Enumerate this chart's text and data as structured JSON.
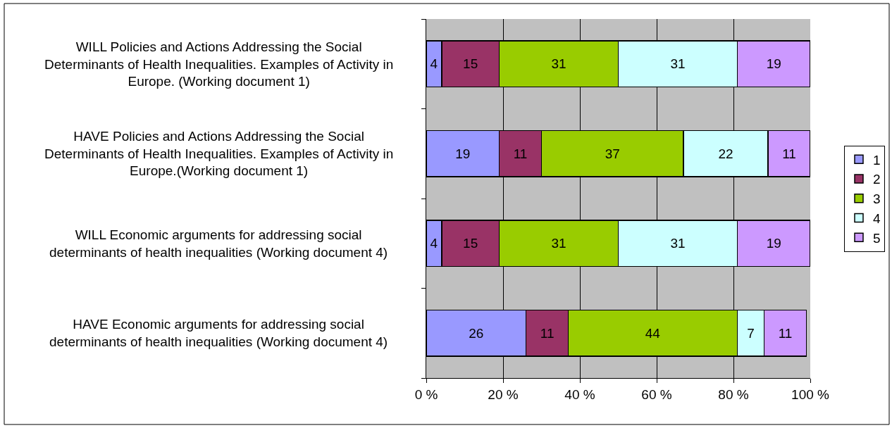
{
  "chart_data": {
    "type": "bar",
    "orientation": "horizontal",
    "stacked": true,
    "categories": [
      "WILL Policies and Actions Addressing the Social Determinants of Health Inequalities. Examples of Activity in Europe. (Working document 1)",
      "HAVE Policies and Actions Addressing the Social Determinants of Health Inequalities. Examples of Activity in Europe.(Working document 1)",
      "WILL Economic arguments for addressing social determinants of health inequalities (Working document 4)",
      "HAVE Economic arguments for addressing social determinants of health inequalities (Working document 4)"
    ],
    "series": [
      {
        "name": "1",
        "color": "#9999ff",
        "values": [
          4,
          19,
          4,
          26
        ]
      },
      {
        "name": "2",
        "color": "#993366",
        "values": [
          15,
          11,
          15,
          11
        ]
      },
      {
        "name": "3",
        "color": "#99cc00",
        "values": [
          31,
          37,
          31,
          44
        ]
      },
      {
        "name": "4",
        "color": "#ccffff",
        "values": [
          31,
          22,
          31,
          7
        ]
      },
      {
        "name": "5",
        "color": "#cc99ff",
        "values": [
          19,
          11,
          19,
          11
        ]
      }
    ],
    "xlim": [
      0,
      100
    ],
    "xticks": [
      {
        "value": 0,
        "label": "0 %"
      },
      {
        "value": 20,
        "label": "20 %"
      },
      {
        "value": 40,
        "label": "40 %"
      },
      {
        "value": 60,
        "label": "60 %"
      },
      {
        "value": 80,
        "label": "80 %"
      },
      {
        "value": 100,
        "label": "100 %"
      }
    ],
    "grid": "x",
    "legend": "right",
    "data_labels": true
  }
}
